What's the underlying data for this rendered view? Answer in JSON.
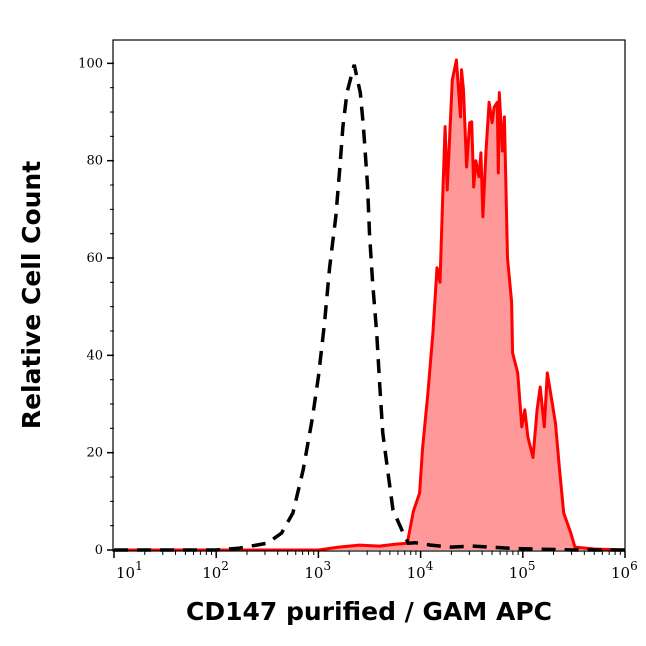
{
  "chart_data": {
    "type": "area",
    "title": "",
    "xlabel": "CD147 purified / GAM APC",
    "ylabel": "Relative Cell Count",
    "xscale": "log",
    "xlim": [
      10,
      1000000
    ],
    "ylim": [
      0,
      104.8
    ],
    "grid": false,
    "x_ticks": [
      {
        "base": "10",
        "exp": "1",
        "value": 10
      },
      {
        "base": "10",
        "exp": "2",
        "value": 100
      },
      {
        "base": "10",
        "exp": "3",
        "value": 1000
      },
      {
        "base": "10",
        "exp": "4",
        "value": 10000
      },
      {
        "base": "10",
        "exp": "5",
        "value": 100000
      },
      {
        "base": "10",
        "exp": "6",
        "value": 1000000
      }
    ],
    "y_ticks": [
      "0",
      "20",
      "40",
      "60",
      "80",
      "100"
    ],
    "series": [
      {
        "style": "dashed-line",
        "color": "#000000",
        "log10_x": [
          1.0,
          2.0,
          2.23,
          2.5,
          2.64,
          2.75,
          2.85,
          2.94,
          3.0,
          3.06,
          3.11,
          3.17,
          3.21,
          3.24,
          3.28,
          3.35,
          3.41,
          3.44,
          3.48,
          3.5,
          3.53,
          3.57,
          3.6,
          3.63,
          3.68,
          3.73,
          3.83,
          3.88,
          3.95,
          4.1,
          4.3,
          4.5,
          4.7,
          4.9,
          5.1,
          5.5,
          6.0
        ],
        "y": [
          0,
          0,
          0.4,
          1.4,
          3.5,
          7.6,
          16.4,
          27,
          35.6,
          46.6,
          58,
          68.5,
          78.7,
          87,
          94,
          99.7,
          94,
          87,
          75,
          65,
          55,
          44.6,
          34,
          24,
          16,
          8.2,
          3.5,
          1.4,
          1.5,
          1,
          0.6,
          0.8,
          0.6,
          0.3,
          0.2,
          0,
          0
        ]
      },
      {
        "style": "filled",
        "color": "#ff0000",
        "fill": "#ff9999",
        "log10_x": [
          1.0,
          3.0,
          3.2,
          3.4,
          3.6,
          3.75,
          3.87,
          3.93,
          3.99,
          4.02,
          4.07,
          4.12,
          4.16,
          4.19,
          4.22,
          4.24,
          4.26,
          4.31,
          4.35,
          4.39,
          4.4,
          4.42,
          4.45,
          4.48,
          4.5,
          4.52,
          4.54,
          4.57,
          4.59,
          4.61,
          4.64,
          4.67,
          4.7,
          4.72,
          4.75,
          4.76,
          4.77,
          4.8,
          4.82,
          4.85,
          4.89,
          4.9,
          4.95,
          4.99,
          5.02,
          5.05,
          5.1,
          5.14,
          5.17,
          5.21,
          5.24,
          5.29,
          5.32,
          5.36,
          5.4,
          5.47,
          5.51,
          5.7,
          6.0
        ],
        "y": [
          0,
          0,
          0.6,
          1,
          0.8,
          1.2,
          1.4,
          8,
          11.7,
          21,
          32,
          44.6,
          58,
          55,
          75,
          87,
          74,
          96.6,
          100.7,
          89,
          98.7,
          94.5,
          78.7,
          87.8,
          88,
          74.6,
          80,
          76.7,
          81.6,
          68.5,
          82,
          92,
          87.8,
          91,
          92,
          77.5,
          94,
          82,
          89,
          60,
          51,
          40.5,
          36.4,
          25.3,
          28.8,
          23.2,
          19,
          28.8,
          33.5,
          25.3,
          36.4,
          30,
          26,
          16.4,
          7.6,
          3.5,
          0.6,
          0.2,
          0
        ]
      }
    ]
  }
}
